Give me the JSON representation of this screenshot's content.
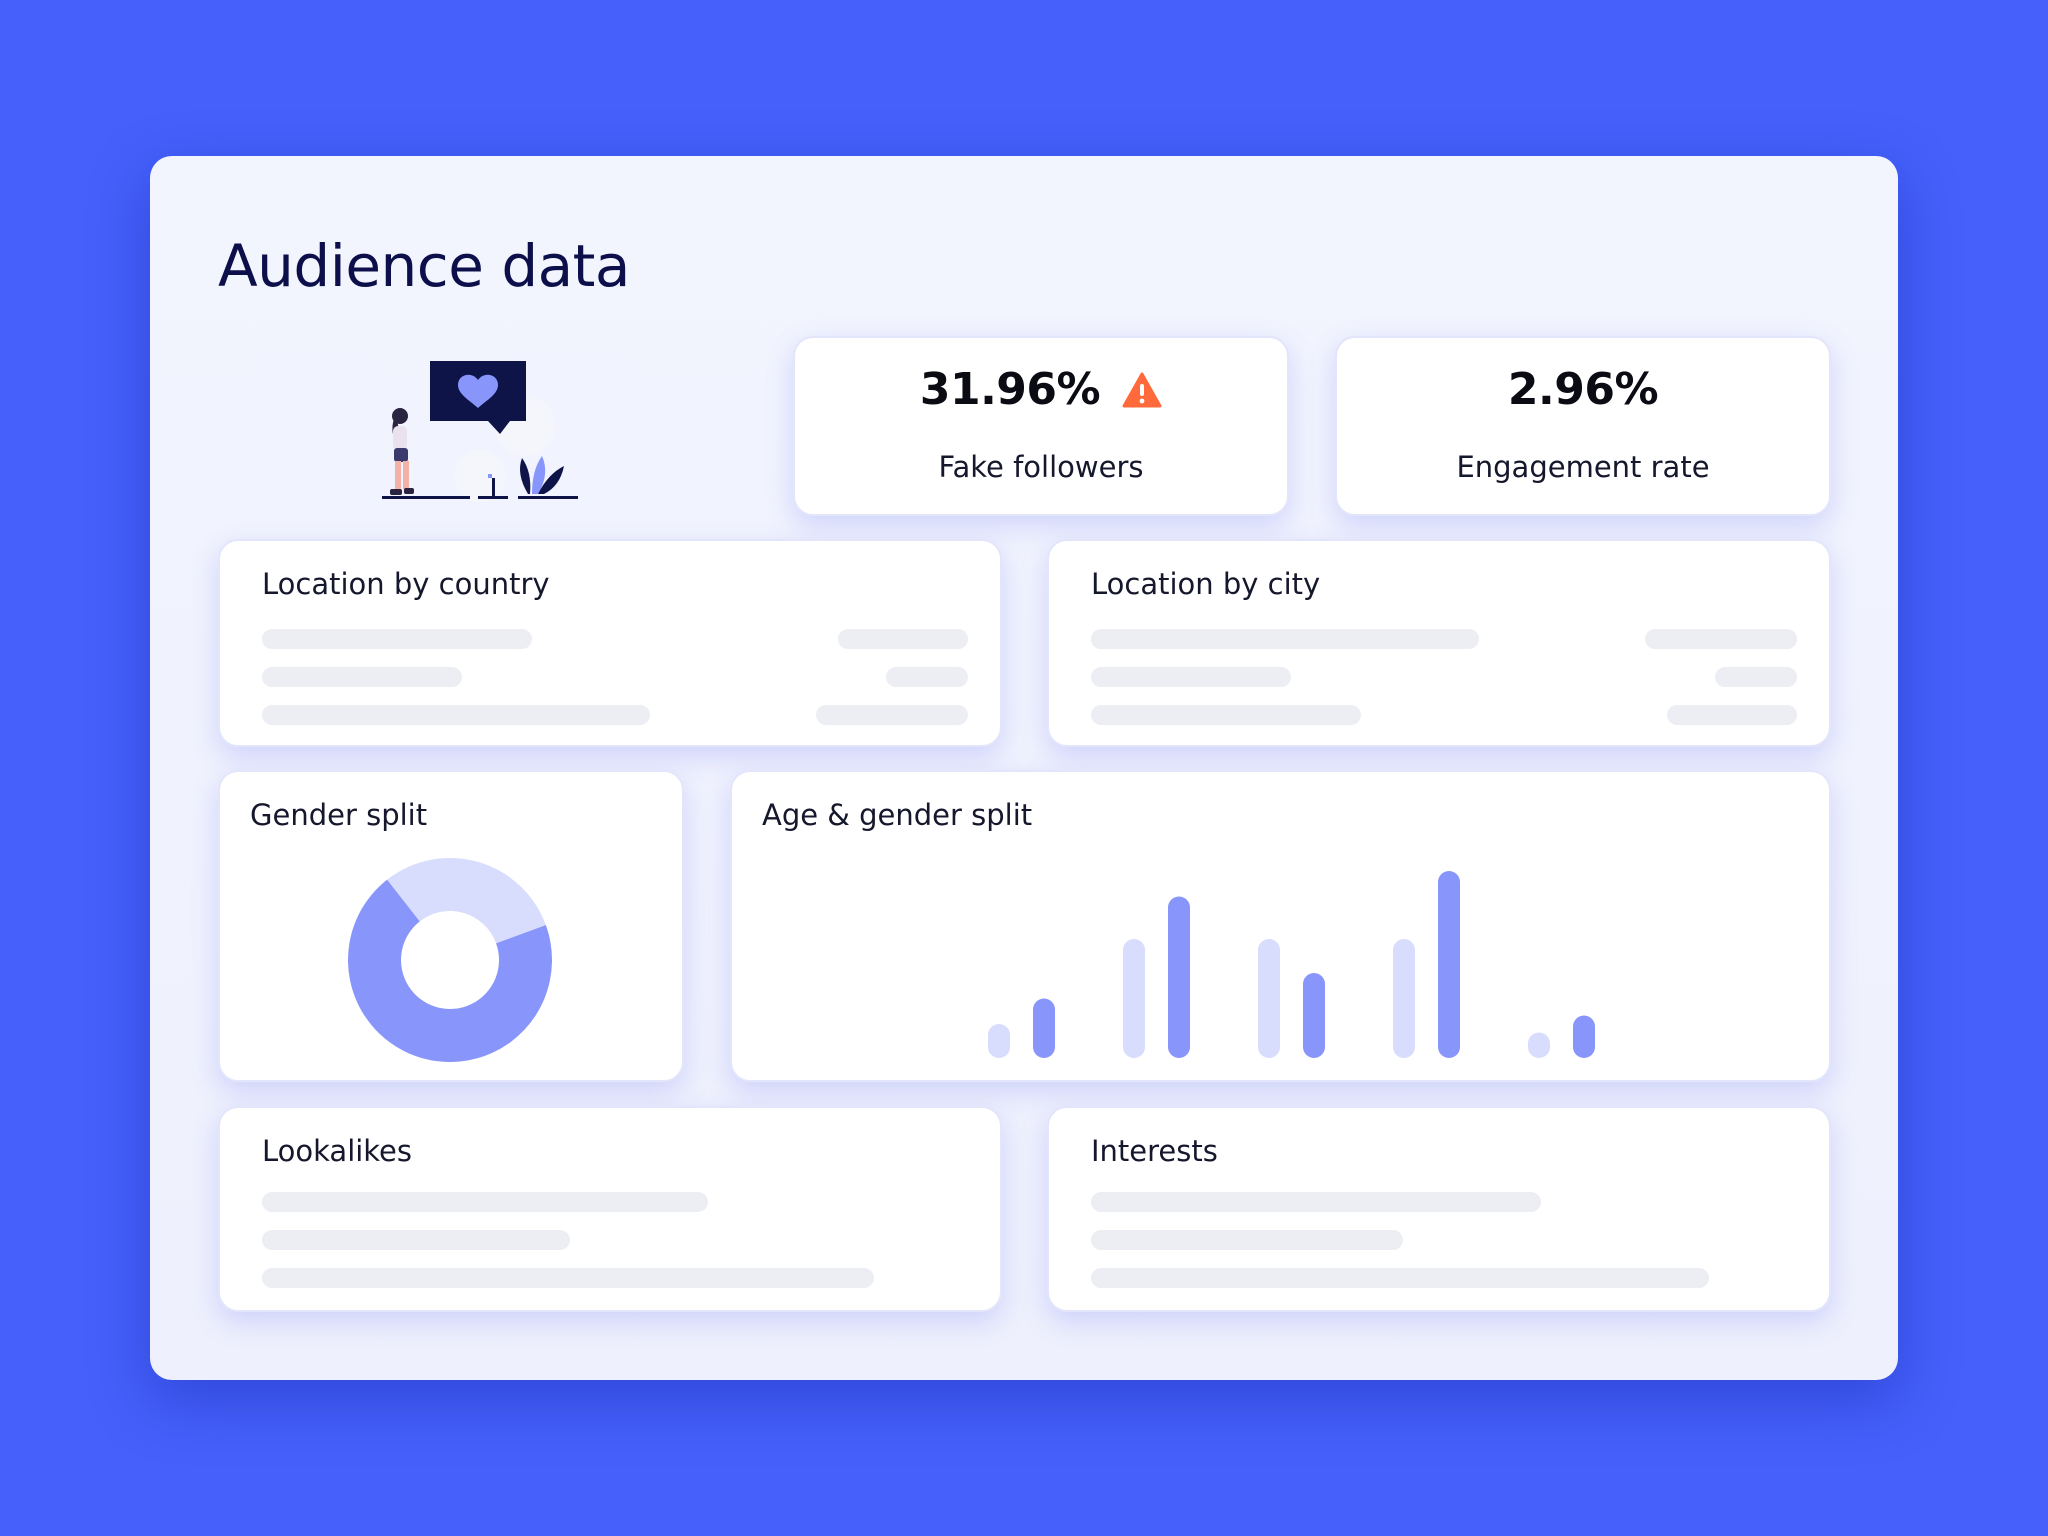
{
  "page": {
    "title": "Audience data"
  },
  "stats": {
    "fake_followers": {
      "value": "31.96%",
      "label": "Fake followers",
      "warning_icon": "warning-triangle-icon",
      "warning_color": "#ff6a3d"
    },
    "engagement_rate": {
      "value": "2.96%",
      "label": "Engagement rate"
    }
  },
  "cards": {
    "location_country": {
      "title": "Location by country"
    },
    "location_city": {
      "title": "Location by city"
    },
    "gender_split": {
      "title": "Gender split"
    },
    "age_gender_split": {
      "title": "Age & gender split"
    },
    "lookalikes": {
      "title": "Lookalikes"
    },
    "interests": {
      "title": "Interests"
    }
  },
  "colors": {
    "background": "#4560fb",
    "primary_series": "#8895fb",
    "secondary_series": "#d8dcfd",
    "skeleton": "#eceef4",
    "title_text": "#0c0f4a"
  },
  "chart_data": [
    {
      "type": "pie",
      "variant": "donut",
      "slices": [
        {
          "value": 0.7,
          "color": "#8895fb"
        },
        {
          "value": 0.3,
          "color": "#d8dcfd"
        }
      ]
    },
    {
      "type": "bar",
      "categories": [
        "",
        "",
        "",
        "",
        ""
      ],
      "series": [
        {
          "values": [
            2,
            7,
            7,
            7,
            1.5
          ],
          "color": "#d8dcfd"
        },
        {
          "values": [
            3.5,
            9.5,
            5,
            11,
            2.5
          ],
          "color": "#8895fb"
        }
      ],
      "ylim": [
        0,
        12
      ],
      "grid": false
    }
  ]
}
